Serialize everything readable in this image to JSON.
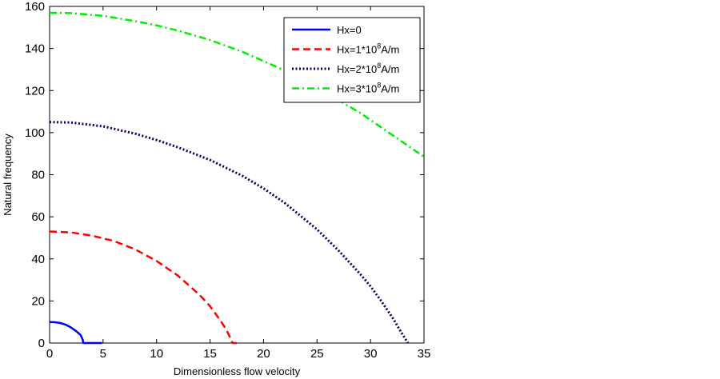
{
  "chart_data": {
    "type": "line",
    "title": "",
    "xlabel": "Dimensionless flow velocity",
    "ylabel": "Natural frequency",
    "xlim": [
      0,
      35
    ],
    "ylim": [
      0,
      160
    ],
    "xticks": [
      "0",
      "5",
      "10",
      "15",
      "20",
      "25",
      "30",
      "35"
    ],
    "yticks": [
      "0",
      "20",
      "40",
      "60",
      "80",
      "100",
      "120",
      "140",
      "160"
    ],
    "grid": false,
    "legend_position": "top-right",
    "series": [
      {
        "name": "Hx=0",
        "legend_base": "Hx=0",
        "legend_sup": "",
        "legend_suffix": "",
        "color": "#0000ff",
        "style": "solid",
        "x": [
          0,
          0.5,
          1.0,
          1.5,
          2.0,
          2.5,
          2.9,
          3.1,
          3.14,
          3.5,
          4.0,
          4.5,
          4.9
        ],
        "y": [
          10.0,
          9.9,
          9.5,
          8.7,
          7.4,
          5.6,
          3.8,
          1.5,
          0,
          0,
          0,
          0,
          0
        ]
      },
      {
        "name": "Hx=1*10^8A/m",
        "legend_base": "Hx=1*10",
        "legend_sup": "8",
        "legend_suffix": "A/m",
        "color": "#ff0000",
        "style": "dashed",
        "x": [
          0,
          2,
          4,
          6,
          8,
          10,
          12,
          14,
          15,
          16,
          16.5,
          16.8,
          17.0,
          17.1,
          17.5
        ],
        "y": [
          53,
          52.6,
          51,
          48.5,
          44.5,
          39,
          32,
          23,
          17.5,
          10.5,
          6.5,
          3.5,
          1.0,
          0,
          0
        ]
      },
      {
        "name": "Hx=2*10^8A/m",
        "legend_base": "Hx=2*10",
        "legend_sup": "8",
        "legend_suffix": "A/m",
        "color": "#000066",
        "style": "dotted",
        "x": [
          0,
          2,
          5,
          8,
          10,
          12,
          15,
          18,
          20,
          22,
          25,
          27,
          29,
          30,
          31,
          32,
          33,
          33.5
        ],
        "y": [
          105,
          104.8,
          103,
          99.5,
          96.5,
          93,
          87,
          79.5,
          73.5,
          66.5,
          54,
          44,
          33,
          27,
          20,
          12.5,
          4,
          0
        ]
      },
      {
        "name": "Hx=3*10^8A/m",
        "legend_base": "Hx=3*10",
        "legend_sup": "8",
        "legend_suffix": "A/m",
        "color": "#00ee00",
        "style": "dashdot",
        "x": [
          0,
          2,
          5,
          8,
          10,
          12,
          15,
          18,
          20,
          22,
          25,
          27,
          29,
          30,
          31,
          32,
          33,
          34,
          35
        ],
        "y": [
          157,
          156.8,
          155.5,
          153,
          151,
          148.5,
          144,
          138.5,
          134,
          129.5,
          121.5,
          115.5,
          109.5,
          106,
          102.5,
          99,
          95.5,
          92,
          88.5
        ]
      }
    ]
  }
}
